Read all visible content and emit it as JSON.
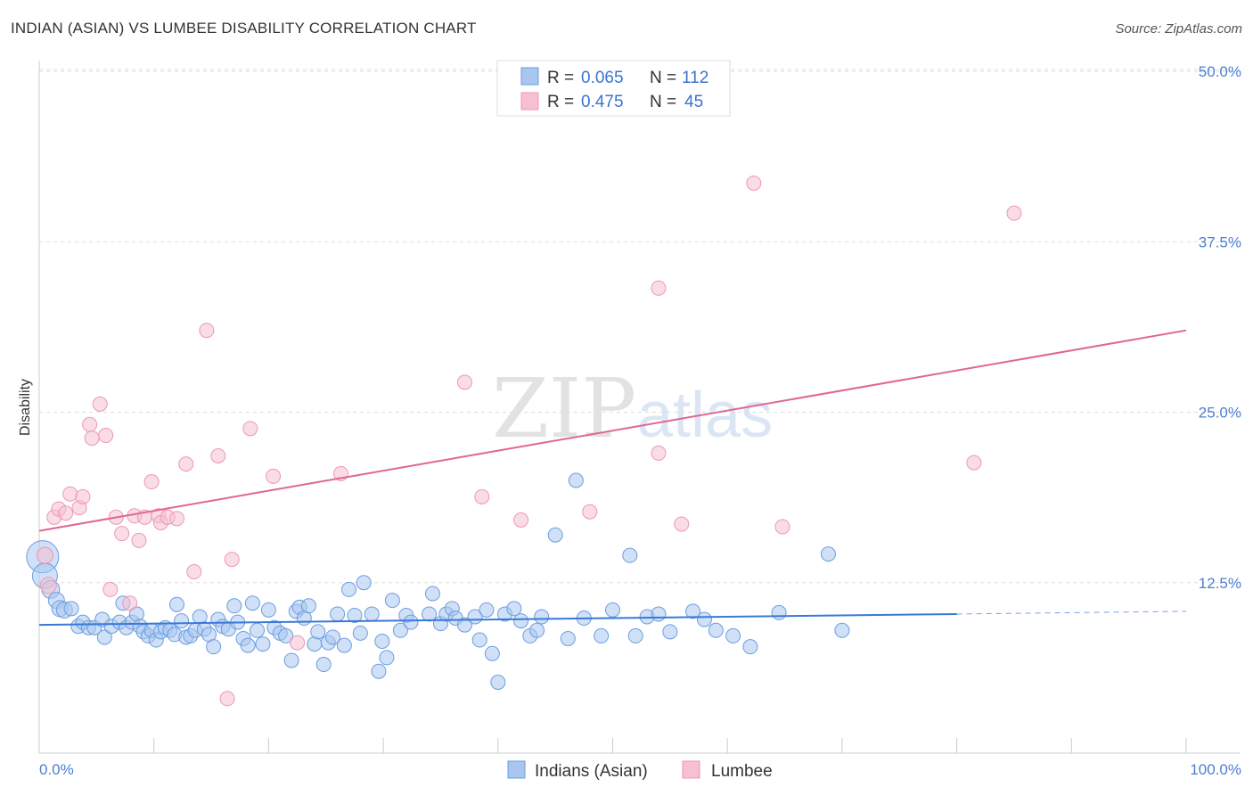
{
  "title": "INDIAN (ASIAN) VS LUMBEE DISABILITY CORRELATION CHART",
  "source": "Source: ZipAtlas.com",
  "watermark": {
    "zip": "ZIP",
    "atlas": "atlas"
  },
  "legend": {
    "r_label": "R =",
    "n_label": "N =",
    "series1": {
      "r": "0.065",
      "n": "112"
    },
    "series2": {
      "r": "0.475",
      "n": "45"
    }
  },
  "colors": {
    "blue_fill": "#a9c6f0",
    "blue_stroke": "#6b9de0",
    "blue_line": "#3a78d8",
    "pink_fill": "#f6bfd2",
    "pink_stroke": "#ec97b4",
    "pink_line": "#e06694",
    "tick_text": "#4a7fd4"
  },
  "chart_data": {
    "type": "scatter",
    "title": "INDIAN (ASIAN) VS LUMBEE DISABILITY CORRELATION CHART",
    "xlabel": "",
    "ylabel": "Disability",
    "xlim": [
      0,
      100
    ],
    "ylim": [
      0,
      50
    ],
    "x_tick_labels": [
      "0.0%",
      "100.0%"
    ],
    "y_ticks": [
      12.5,
      25.0,
      37.5,
      50.0
    ],
    "y_tick_labels": [
      "12.5%",
      "25.0%",
      "37.5%",
      "50.0%"
    ],
    "grid": "horizontal dashed",
    "legend_position": "top-center",
    "bottom_legend": [
      "Indians (Asian)",
      "Lumbee"
    ],
    "series": [
      {
        "name": "Indians (Asian)",
        "R": 0.065,
        "N": 112,
        "trend": {
          "x0": 0,
          "y0": 9.4,
          "x1": 80,
          "y1": 10.2,
          "dashed_to": 100,
          "y_end": 10.4
        },
        "points": [
          [
            0.3,
            14.4,
            18
          ],
          [
            0.5,
            13.0,
            14
          ],
          [
            1.0,
            12.0,
            10
          ],
          [
            1.5,
            11.2,
            9
          ],
          [
            1.8,
            10.6,
            9
          ],
          [
            2.2,
            10.5,
            9
          ],
          [
            2.8,
            10.6,
            8
          ],
          [
            3.4,
            9.3,
            8
          ],
          [
            3.8,
            9.6,
            8
          ],
          [
            4.3,
            9.2,
            8
          ],
          [
            4.8,
            9.2,
            8
          ],
          [
            5.5,
            9.8,
            8
          ],
          [
            5.7,
            8.5,
            8
          ],
          [
            6.3,
            9.3,
            8
          ],
          [
            7.0,
            9.6,
            8
          ],
          [
            7.3,
            11.0,
            8
          ],
          [
            7.6,
            9.2,
            8
          ],
          [
            8.1,
            9.6,
            8
          ],
          [
            8.5,
            10.2,
            8
          ],
          [
            8.8,
            9.3,
            8
          ],
          [
            9.1,
            8.9,
            8
          ],
          [
            9.5,
            8.6,
            8
          ],
          [
            9.8,
            9.0,
            8
          ],
          [
            10.2,
            8.3,
            8
          ],
          [
            10.6,
            8.9,
            8
          ],
          [
            11.0,
            9.2,
            8
          ],
          [
            11.4,
            9.0,
            8
          ],
          [
            11.8,
            8.7,
            8
          ],
          [
            12.0,
            10.9,
            8
          ],
          [
            12.4,
            9.7,
            8
          ],
          [
            12.8,
            8.5,
            8
          ],
          [
            13.2,
            8.6,
            8
          ],
          [
            13.6,
            9.0,
            8
          ],
          [
            14.0,
            10.0,
            8
          ],
          [
            14.4,
            9.1,
            8
          ],
          [
            14.8,
            8.7,
            8
          ],
          [
            15.2,
            7.8,
            8
          ],
          [
            15.6,
            9.8,
            8
          ],
          [
            16.0,
            9.3,
            8
          ],
          [
            16.5,
            9.1,
            8
          ],
          [
            17.0,
            10.8,
            8
          ],
          [
            17.3,
            9.6,
            8
          ],
          [
            17.8,
            8.4,
            8
          ],
          [
            18.2,
            7.9,
            8
          ],
          [
            18.6,
            11.0,
            8
          ],
          [
            19.0,
            9.0,
            8
          ],
          [
            19.5,
            8.0,
            8
          ],
          [
            20.0,
            10.5,
            8
          ],
          [
            20.5,
            9.2,
            8
          ],
          [
            21.0,
            8.8,
            8
          ],
          [
            21.5,
            8.6,
            8
          ],
          [
            22.0,
            6.8,
            8
          ],
          [
            22.4,
            10.4,
            8
          ],
          [
            22.7,
            10.7,
            8
          ],
          [
            23.1,
            9.9,
            8
          ],
          [
            23.5,
            10.8,
            8
          ],
          [
            24.0,
            8.0,
            8
          ],
          [
            24.3,
            8.9,
            8
          ],
          [
            24.8,
            6.5,
            8
          ],
          [
            25.2,
            8.1,
            8
          ],
          [
            25.6,
            8.5,
            8
          ],
          [
            26.0,
            10.2,
            8
          ],
          [
            26.6,
            7.9,
            8
          ],
          [
            27.0,
            12.0,
            8
          ],
          [
            27.5,
            10.1,
            8
          ],
          [
            28.0,
            8.8,
            8
          ],
          [
            28.3,
            12.5,
            8
          ],
          [
            29.0,
            10.2,
            8
          ],
          [
            29.6,
            6.0,
            8
          ],
          [
            29.9,
            8.2,
            8
          ],
          [
            30.3,
            7.0,
            8
          ],
          [
            30.8,
            11.2,
            8
          ],
          [
            31.5,
            9.0,
            8
          ],
          [
            32.0,
            10.1,
            8
          ],
          [
            32.4,
            9.6,
            8
          ],
          [
            34.0,
            10.2,
            8
          ],
          [
            34.3,
            11.7,
            8
          ],
          [
            35.0,
            9.5,
            8
          ],
          [
            35.5,
            10.2,
            8
          ],
          [
            36.0,
            10.6,
            8
          ],
          [
            36.3,
            9.9,
            8
          ],
          [
            37.1,
            9.4,
            8
          ],
          [
            38.0,
            10.0,
            8
          ],
          [
            38.4,
            8.3,
            8
          ],
          [
            39.0,
            10.5,
            8
          ],
          [
            39.5,
            7.3,
            8
          ],
          [
            40.0,
            5.2,
            8
          ],
          [
            40.6,
            10.2,
            8
          ],
          [
            41.4,
            10.6,
            8
          ],
          [
            42.0,
            9.7,
            8
          ],
          [
            42.8,
            8.6,
            8
          ],
          [
            43.4,
            9.0,
            8
          ],
          [
            43.8,
            10.0,
            8
          ],
          [
            45.0,
            16.0,
            8
          ],
          [
            46.1,
            8.4,
            8
          ],
          [
            46.8,
            20.0,
            8
          ],
          [
            47.5,
            9.9,
            8
          ],
          [
            49.0,
            8.6,
            8
          ],
          [
            50.0,
            10.5,
            8
          ],
          [
            51.5,
            14.5,
            8
          ],
          [
            52.0,
            8.6,
            8
          ],
          [
            53.0,
            10.0,
            8
          ],
          [
            54.0,
            10.2,
            8
          ],
          [
            55.0,
            8.9,
            8
          ],
          [
            57.0,
            10.4,
            8
          ],
          [
            58.0,
            9.8,
            8
          ],
          [
            59.0,
            9.0,
            8
          ],
          [
            60.5,
            8.6,
            8
          ],
          [
            62.0,
            7.8,
            8
          ],
          [
            64.5,
            10.3,
            8
          ],
          [
            68.8,
            14.6,
            8
          ],
          [
            70.0,
            9.0,
            8
          ]
        ]
      },
      {
        "name": "Lumbee",
        "R": 0.475,
        "N": 45,
        "trend": {
          "x0": 0,
          "y0": 16.3,
          "x1": 100,
          "y1": 31.0
        },
        "points": [
          [
            0.5,
            14.5,
            9
          ],
          [
            0.8,
            12.3,
            9
          ],
          [
            1.3,
            17.3,
            8
          ],
          [
            1.7,
            17.9,
            8
          ],
          [
            2.3,
            17.6,
            8
          ],
          [
            2.7,
            19.0,
            8
          ],
          [
            3.5,
            18.0,
            8
          ],
          [
            3.8,
            18.8,
            8
          ],
          [
            4.4,
            24.1,
            8
          ],
          [
            4.6,
            23.1,
            8
          ],
          [
            5.3,
            25.6,
            8
          ],
          [
            5.8,
            23.3,
            8
          ],
          [
            6.2,
            12.0,
            8
          ],
          [
            6.7,
            17.3,
            8
          ],
          [
            7.2,
            16.1,
            8
          ],
          [
            7.9,
            11.0,
            8
          ],
          [
            8.3,
            17.4,
            8
          ],
          [
            8.7,
            15.6,
            8
          ],
          [
            9.2,
            17.3,
            8
          ],
          [
            9.8,
            19.9,
            8
          ],
          [
            10.4,
            17.4,
            8
          ],
          [
            10.6,
            16.9,
            8
          ],
          [
            11.2,
            17.3,
            8
          ],
          [
            12.0,
            17.2,
            8
          ],
          [
            12.8,
            21.2,
            8
          ],
          [
            13.5,
            13.3,
            8
          ],
          [
            14.6,
            31.0,
            8
          ],
          [
            15.6,
            21.8,
            8
          ],
          [
            16.4,
            4.0,
            8
          ],
          [
            16.8,
            14.2,
            8
          ],
          [
            18.4,
            23.8,
            8
          ],
          [
            20.4,
            20.3,
            8
          ],
          [
            22.5,
            8.1,
            8
          ],
          [
            26.3,
            20.5,
            8
          ],
          [
            37.1,
            27.2,
            8
          ],
          [
            38.6,
            18.8,
            8
          ],
          [
            42.0,
            17.1,
            8
          ],
          [
            48.0,
            17.7,
            8
          ],
          [
            54.0,
            34.1,
            8
          ],
          [
            54.0,
            22.0,
            8
          ],
          [
            56.0,
            16.8,
            8
          ],
          [
            62.3,
            41.8,
            8
          ],
          [
            64.8,
            16.6,
            8
          ],
          [
            81.5,
            21.3,
            8
          ],
          [
            85.0,
            39.6,
            8
          ]
        ]
      }
    ]
  }
}
